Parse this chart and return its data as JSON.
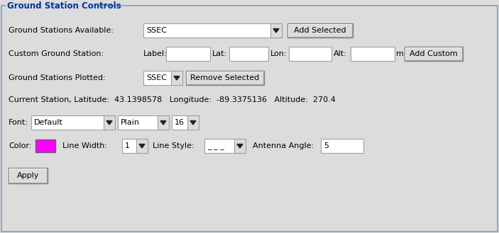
{
  "title": "Ground Station Controls",
  "bg_color": "#dcdcdc",
  "widget_bg": "#ffffff",
  "widget_border": "#a0a0a0",
  "button_bg": "#dcdcdc",
  "button_border_dark": "#808080",
  "button_border_light": "#f0f0f0",
  "panel_border": "#7ba0c0",
  "highlight_color": "#ff00ff",
  "text_color": "#000000",
  "title_color": "#003399",
  "row1_label": "Ground Stations Available:",
  "row1_dropdown_text": "SSEC",
  "row1_button": "Add Selected",
  "row2_label": "Custom Ground Station:",
  "row2_label2": "Label:",
  "row2_lat": "Lat:",
  "row2_lon": "Lon:",
  "row2_alt": "Alt:",
  "row2_unit": "m",
  "row2_button": "Add Custom",
  "row3_label": "Ground Stations Plotted:",
  "row3_dropdown": "SSEC",
  "row3_button": "Remove Selected",
  "row4_text": "Current Station, Latitude:  43.1398578   Longitude:  -89.3375136   Altitude:  270.4",
  "row5_label": "Font:",
  "row5_dd1": "Default",
  "row5_dd2": "Plain",
  "row5_dd3": "16",
  "row6_label": "Color:",
  "row6_lw_label": "Line Width:",
  "row6_lw_val": "1",
  "row6_ls_label": "Line Style:",
  "row6_ls_val": "_ _ _",
  "row6_aa_label": "Antenna Angle:",
  "row6_aa_val": "5",
  "apply_button": "Apply",
  "figw": 7.03,
  "figh": 3.29,
  "dpi": 100
}
